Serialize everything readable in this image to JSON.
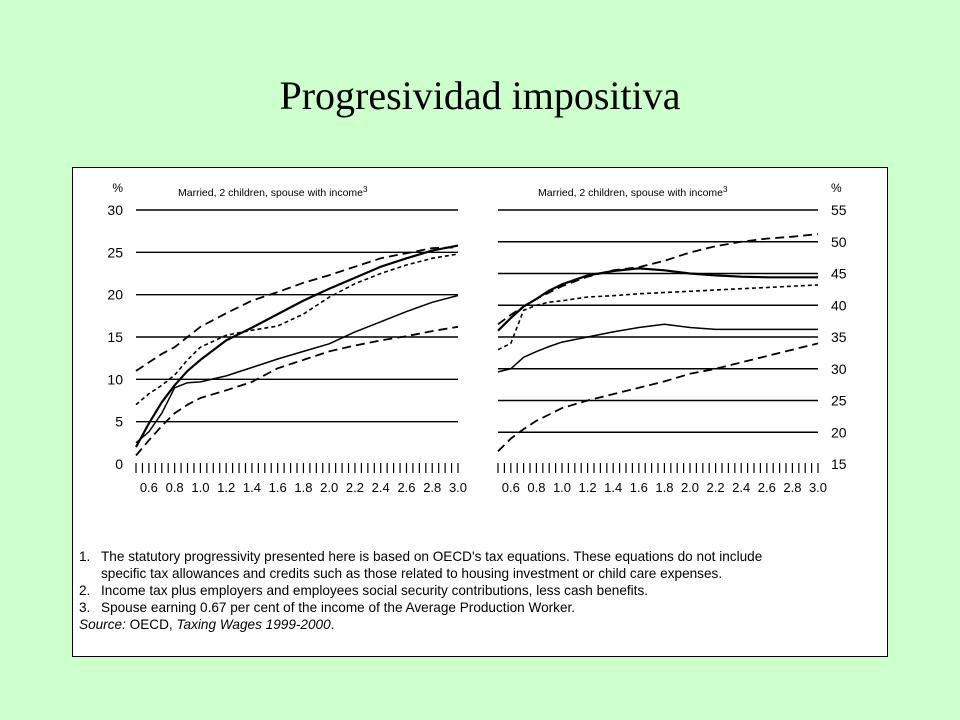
{
  "slide": {
    "title": "Progresividad impositiva"
  },
  "chart_data": [
    {
      "type": "line",
      "title": "Married, 2 children, spouse with income",
      "title_superscript": "3",
      "ylabel": "%",
      "ylim": [
        0,
        30
      ],
      "yticks": [
        0,
        5,
        10,
        15,
        20,
        25,
        30
      ],
      "xlim": [
        0.5,
        3.0
      ],
      "xticks": [
        "0.6",
        "0.8",
        "1.0",
        "1.2",
        "1.4",
        "1.6",
        "1.8",
        "2.0",
        "2.2",
        "2.4",
        "2.6",
        "2.8",
        "3.0"
      ],
      "grid": "horizontal",
      "series": [
        {
          "style": "dashed",
          "x": [
            0.5,
            0.6,
            0.7,
            0.8,
            0.9,
            1.0,
            1.2,
            1.4,
            1.6,
            1.8,
            2.0,
            2.2,
            2.4,
            2.6,
            2.8,
            3.0
          ],
          "y": [
            11.0,
            12.0,
            13.0,
            13.8,
            15.0,
            16.2,
            17.8,
            19.3,
            20.3,
            21.4,
            22.3,
            23.3,
            24.3,
            24.9,
            25.5,
            25.6
          ]
        },
        {
          "style": "solid-bold",
          "x": [
            0.5,
            0.6,
            0.7,
            0.8,
            0.9,
            1.0,
            1.2,
            1.4,
            1.6,
            1.8,
            2.0,
            2.2,
            2.4,
            2.6,
            2.8,
            3.0
          ],
          "y": [
            2.0,
            4.8,
            7.3,
            9.3,
            11.0,
            12.3,
            14.6,
            16.1,
            17.7,
            19.3,
            20.7,
            22.0,
            23.3,
            24.3,
            25.2,
            25.8
          ]
        },
        {
          "style": "short-dashed",
          "x": [
            0.5,
            0.6,
            0.7,
            0.8,
            0.9,
            1.0,
            1.2,
            1.4,
            1.6,
            1.8,
            2.0,
            2.2,
            2.4,
            2.6,
            2.8,
            3.0
          ],
          "y": [
            7.0,
            8.3,
            9.3,
            10.5,
            12.3,
            13.8,
            15.2,
            15.8,
            16.3,
            17.7,
            19.7,
            21.3,
            22.5,
            23.5,
            24.3,
            24.8
          ]
        },
        {
          "style": "solid",
          "x": [
            0.5,
            0.6,
            0.7,
            0.8,
            0.9,
            1.0,
            1.2,
            1.4,
            1.6,
            1.8,
            2.0,
            2.2,
            2.4,
            2.6,
            2.8,
            3.0
          ],
          "y": [
            2.5,
            3.8,
            6.0,
            9.0,
            9.6,
            9.7,
            10.4,
            11.4,
            12.4,
            13.3,
            14.2,
            15.6,
            16.8,
            18.0,
            19.1,
            19.9
          ]
        },
        {
          "style": "dashed",
          "x": [
            0.5,
            0.6,
            0.7,
            0.8,
            0.9,
            1.0,
            1.2,
            1.4,
            1.6,
            1.8,
            2.0,
            2.2,
            2.4,
            2.6,
            2.8,
            3.0
          ],
          "y": [
            1.0,
            2.8,
            4.5,
            6.0,
            7.0,
            7.8,
            8.7,
            9.7,
            11.3,
            12.3,
            13.3,
            14.0,
            14.6,
            15.1,
            15.7,
            16.2
          ]
        }
      ]
    },
    {
      "type": "line",
      "title": "Married, 2 children, spouse with income",
      "title_superscript": "3",
      "ylabel": "%",
      "ylim": [
        15,
        55
      ],
      "yticks": [
        15,
        20,
        25,
        30,
        35,
        40,
        45,
        50,
        55
      ],
      "y_axis_position": "right",
      "xlim": [
        0.5,
        3.0
      ],
      "xticks": [
        "0.6",
        "0.8",
        "1.0",
        "1.2",
        "1.4",
        "1.6",
        "1.8",
        "2.0",
        "2.2",
        "2.4",
        "2.6",
        "2.8",
        "3.0"
      ],
      "grid": "horizontal",
      "series": [
        {
          "style": "dashed",
          "x": [
            0.5,
            0.6,
            0.7,
            0.8,
            0.9,
            1.0,
            1.2,
            1.4,
            1.6,
            1.8,
            2.0,
            2.2,
            2.4,
            2.6,
            2.8,
            3.0
          ],
          "y": [
            37.0,
            38.5,
            39.8,
            41.0,
            42.0,
            43.0,
            44.5,
            45.5,
            46.0,
            47.0,
            48.3,
            49.3,
            50.0,
            50.5,
            50.8,
            51.2
          ]
        },
        {
          "style": "solid-bold",
          "x": [
            0.5,
            0.6,
            0.7,
            0.8,
            0.9,
            1.0,
            1.2,
            1.4,
            1.6,
            1.8,
            2.0,
            2.2,
            2.4,
            2.6,
            2.8,
            3.0
          ],
          "y": [
            36.0,
            38.0,
            39.8,
            41.0,
            42.3,
            43.3,
            44.7,
            45.4,
            45.8,
            45.5,
            45.0,
            44.7,
            44.5,
            44.4,
            44.4,
            44.4
          ]
        },
        {
          "style": "short-dashed",
          "x": [
            0.5,
            0.6,
            0.7,
            0.8,
            0.9,
            1.0,
            1.2,
            1.4,
            1.6,
            1.8,
            2.0,
            2.2,
            2.4,
            2.6,
            2.8,
            3.0
          ],
          "y": [
            33.0,
            34.0,
            39.2,
            40.0,
            40.5,
            40.7,
            41.3,
            41.5,
            41.8,
            42.0,
            42.2,
            42.4,
            42.6,
            42.8,
            43.0,
            43.2
          ]
        },
        {
          "style": "solid",
          "x": [
            0.5,
            0.6,
            0.7,
            0.8,
            0.9,
            1.0,
            1.2,
            1.4,
            1.6,
            1.8,
            2.0,
            2.2,
            2.4,
            2.6,
            2.8,
            3.0
          ],
          "y": [
            29.5,
            30.0,
            31.8,
            32.7,
            33.5,
            34.2,
            35.0,
            35.8,
            36.5,
            37.0,
            36.5,
            36.2,
            36.2,
            36.2,
            36.2,
            36.2
          ]
        },
        {
          "style": "dashed",
          "x": [
            0.5,
            0.6,
            0.7,
            0.8,
            0.9,
            1.0,
            1.2,
            1.4,
            1.6,
            1.8,
            2.0,
            2.2,
            2.4,
            2.6,
            2.8,
            3.0
          ],
          "y": [
            17.0,
            19.0,
            20.5,
            21.8,
            22.8,
            23.8,
            25.0,
            26.0,
            27.0,
            28.0,
            29.2,
            30.0,
            31.0,
            32.0,
            33.0,
            34.0
          ]
        }
      ]
    }
  ],
  "notes": {
    "items": [
      {
        "num": "1.",
        "lines": [
          "The statutory progressivity presented here is based on OECD's tax equations. These equations do not include",
          "specific tax allowances and credits such as those related to housing investment or child care expenses."
        ]
      },
      {
        "num": "2.",
        "lines": [
          "Income tax plus employers and employees social security contributions, less cash benefits."
        ]
      },
      {
        "num": "3.",
        "lines": [
          "Spouse earning 0.67 per cent of the income of the Average Production Worker."
        ]
      }
    ],
    "source_label": "Source:",
    "source_text": "OECD,",
    "source_italic": "Taxing Wages 1999-2000",
    "source_end": "."
  }
}
